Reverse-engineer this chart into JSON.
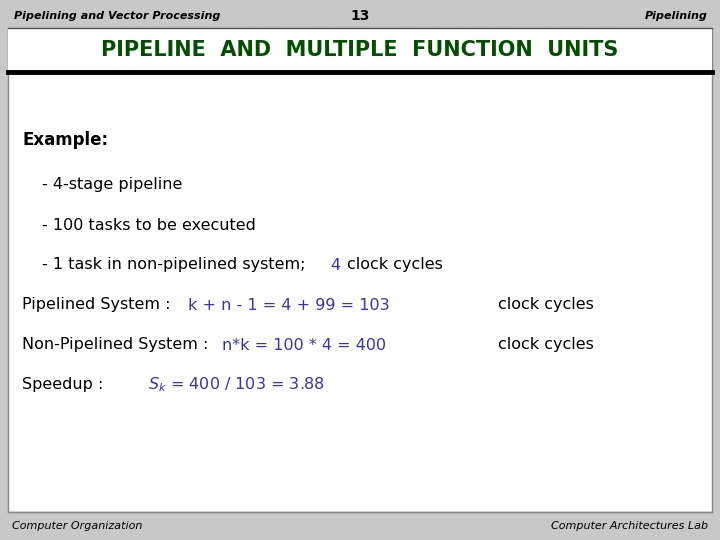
{
  "bg_color": "#c8c8c8",
  "slide_bg": "#ffffff",
  "header_top_left": "Pipelining and Vector Processing",
  "header_center": "13",
  "header_top_right": "Pipelining",
  "title_text": "PIPELINE  AND  MULTIPLE  FUNCTION  UNITS",
  "title_color": "#005000",
  "footer_left": "Computer Organization",
  "footer_right": "Computer Architectures Lab",
  "black": "#000000",
  "blue_color": "#3333bb",
  "header_fontsize": 8,
  "footer_fontsize": 8,
  "title_fontsize": 15,
  "body_fontsize": 11.5
}
